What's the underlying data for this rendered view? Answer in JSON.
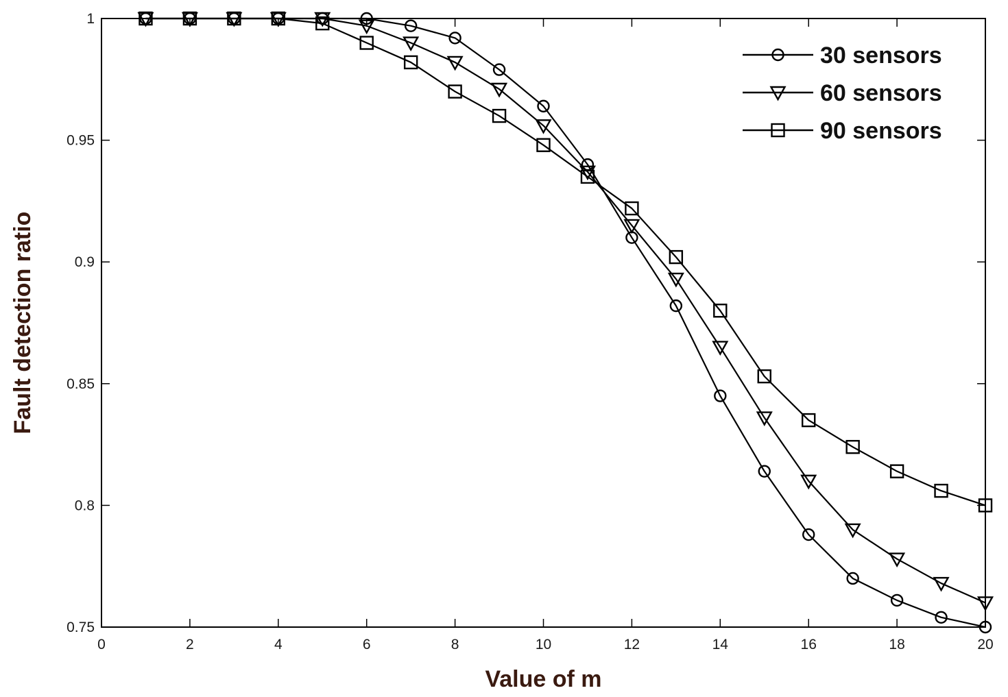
{
  "chart_data": {
    "type": "line",
    "title": "",
    "xlabel": "Value of m",
    "ylabel": "Fault detection ratio",
    "xlim": [
      0,
      20
    ],
    "ylim": [
      0.75,
      1
    ],
    "xticks": [
      0,
      2,
      4,
      6,
      8,
      10,
      12,
      14,
      16,
      18,
      20
    ],
    "yticks": [
      0.75,
      0.8,
      0.85,
      0.9,
      0.95,
      1
    ],
    "xtick_labels": [
      "0",
      "2",
      "4",
      "6",
      "8",
      "10",
      "12",
      "14",
      "16",
      "18",
      "20"
    ],
    "ytick_labels": [
      "0.75",
      "0.8",
      "0.85",
      "0.9",
      "0.95",
      "1"
    ],
    "grid": false,
    "legend_position": "top-right",
    "x": [
      1,
      2,
      3,
      4,
      5,
      6,
      7,
      8,
      9,
      10,
      11,
      12,
      13,
      14,
      15,
      16,
      17,
      18,
      19,
      20
    ],
    "series": [
      {
        "name": "30 sensors",
        "marker": "circle",
        "values": [
          1.0,
          1.0,
          1.0,
          1.0,
          1.0,
          1.0,
          0.997,
          0.992,
          0.979,
          0.964,
          0.94,
          0.91,
          0.882,
          0.845,
          0.814,
          0.788,
          0.77,
          0.761,
          0.754,
          0.75
        ]
      },
      {
        "name": "60 sensors",
        "marker": "triangle-down",
        "values": [
          1.0,
          1.0,
          1.0,
          1.0,
          1.0,
          0.997,
          0.99,
          0.982,
          0.971,
          0.956,
          0.937,
          0.915,
          0.893,
          0.865,
          0.836,
          0.81,
          0.79,
          0.778,
          0.768,
          0.76
        ]
      },
      {
        "name": "90 sensors",
        "marker": "square",
        "values": [
          1.0,
          1.0,
          1.0,
          1.0,
          0.998,
          0.99,
          0.982,
          0.97,
          0.96,
          0.948,
          0.935,
          0.922,
          0.902,
          0.88,
          0.853,
          0.835,
          0.824,
          0.814,
          0.806,
          0.8
        ]
      }
    ],
    "colors": {
      "lines": "#000000",
      "axes": "#000000",
      "axis_title": "#3a1a10",
      "background": "#ffffff"
    }
  }
}
